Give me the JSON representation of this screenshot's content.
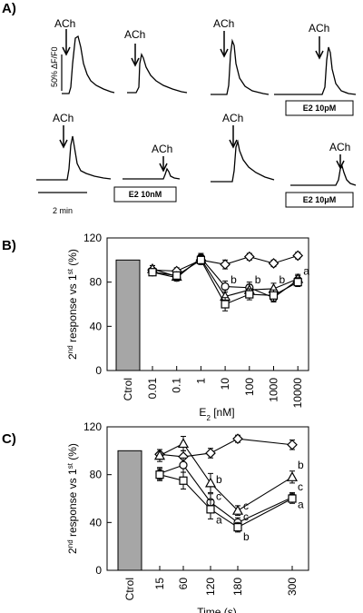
{
  "panels": {
    "a": {
      "label": "A)",
      "stim_label": "ACh",
      "scale_y_label": "50% ΔF/F0",
      "scale_x_label": "2 min",
      "conditions": [
        "E2 10pM",
        "E2 10nM",
        "E2 10μM"
      ]
    },
    "b": {
      "label": "B)"
    },
    "c": {
      "label": "C)"
    }
  },
  "chart_data": [
    {
      "type": "line",
      "panel": "B",
      "x_scale": "log",
      "xlabel": "E2 [nM]",
      "ylabel": "2nd response vs 1st (%)",
      "ylim": [
        0,
        120
      ],
      "yticks": [
        0,
        40,
        80,
        120
      ],
      "x": [
        0.01,
        0.1,
        1,
        10,
        100,
        1000,
        10000
      ],
      "x_tick_labels": [
        "0.01",
        "0.1",
        "1",
        "10",
        "100",
        "1000",
        "10000"
      ],
      "control": {
        "label": "Ctrol",
        "value": 100
      },
      "series": [
        {
          "marker": "diamond",
          "values": [
            91,
            90,
            100,
            96,
            103,
            97,
            104
          ],
          "errors": [
            4,
            3,
            4,
            4,
            3,
            3,
            3
          ]
        },
        {
          "marker": "circle",
          "values": [
            89,
            84,
            102,
            76,
            75,
            66,
            82
          ],
          "errors": [
            3,
            3,
            4,
            5,
            5,
            4,
            4
          ]
        },
        {
          "marker": "triangle",
          "values": [
            92,
            85,
            101,
            67,
            73,
            74,
            83
          ],
          "errors": [
            3,
            3,
            4,
            6,
            5,
            5,
            4
          ]
        },
        {
          "marker": "square",
          "values": [
            89,
            86,
            100,
            60,
            69,
            68,
            80
          ],
          "errors": [
            3,
            3,
            4,
            6,
            5,
            5,
            4
          ]
        }
      ],
      "annotations": [
        {
          "x": 10,
          "y": 82,
          "text": "b"
        },
        {
          "x": 100,
          "y": 82,
          "text": "b"
        },
        {
          "x": 1000,
          "y": 82,
          "text": "b"
        },
        {
          "x": 10000,
          "y": 90,
          "text": "a"
        }
      ]
    },
    {
      "type": "line",
      "panel": "C",
      "xlabel": "Time (s)",
      "ylabel": "2nd response vs 1st (%)",
      "ylim": [
        0,
        120
      ],
      "yticks": [
        0,
        40,
        80,
        120
      ],
      "x": [
        15,
        60,
        120,
        180,
        300
      ],
      "x_tick_labels": [
        "15",
        "60",
        "120",
        "180",
        "300"
      ],
      "control": {
        "label": "Ctrol",
        "value": 100
      },
      "series": [
        {
          "marker": "diamond",
          "values": [
            97,
            95,
            98,
            110,
            105
          ],
          "errors": [
            4,
            5,
            4,
            3,
            4
          ]
        },
        {
          "marker": "triangle",
          "values": [
            96,
            106,
            73,
            50,
            78
          ],
          "errors": [
            5,
            6,
            8,
            4,
            5
          ]
        },
        {
          "marker": "circle",
          "values": [
            81,
            88,
            57,
            40,
            61
          ],
          "errors": [
            5,
            6,
            7,
            4,
            4
          ]
        },
        {
          "marker": "square",
          "values": [
            80,
            75,
            51,
            36,
            60
          ],
          "errors": [
            5,
            7,
            8,
            4,
            4
          ]
        }
      ],
      "annotations": [
        {
          "x": 120,
          "y": 76,
          "text": "b"
        },
        {
          "x": 120,
          "y": 62,
          "text": "c"
        },
        {
          "x": 120,
          "y": 42,
          "text": "a"
        },
        {
          "x": 180,
          "y": 54,
          "text": "c"
        },
        {
          "x": 180,
          "y": 45,
          "text": "c"
        },
        {
          "x": 180,
          "y": 28,
          "text": "b"
        },
        {
          "x": 300,
          "y": 88,
          "text": "b"
        },
        {
          "x": 300,
          "y": 70,
          "text": "c"
        },
        {
          "x": 300,
          "y": 55,
          "text": "a"
        }
      ]
    }
  ]
}
